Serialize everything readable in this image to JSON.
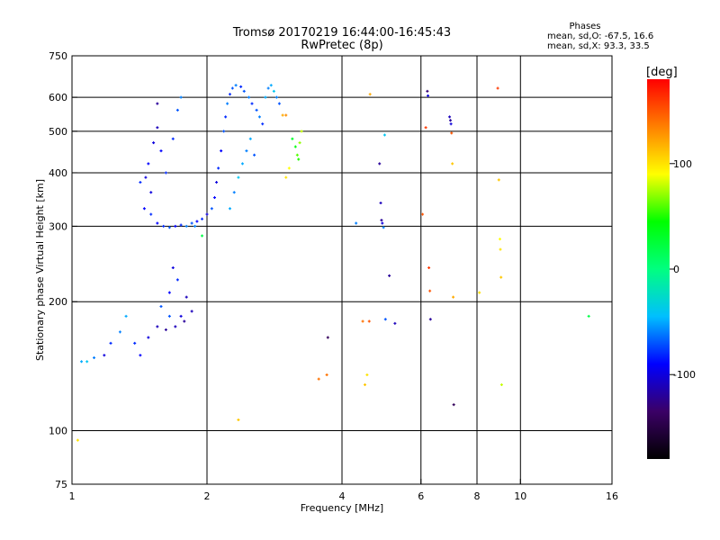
{
  "header": {
    "title_line1": "Tromsø 20170219 16:44:00-16:45:43",
    "title_line2": "RwPretec (8p)",
    "phases_label": "Phases",
    "phases_line1": "mean, sd,O: -67.5, 16.6",
    "phases_line2": "mean, sd,X:  93.3, 33.5"
  },
  "colorbar": {
    "unit_label": "[deg]",
    "ticks": [
      {
        "value": 100,
        "label": "100"
      },
      {
        "value": 0,
        "label": "0"
      },
      {
        "value": -100,
        "label": "-100"
      }
    ],
    "range": [
      -180,
      180
    ],
    "stops": [
      "#000000",
      "#3b0066",
      "#0000ff",
      "#00bfff",
      "#00ff80",
      "#00ff00",
      "#ffff00",
      "#ff8000",
      "#ff0000"
    ]
  },
  "chart_data": {
    "type": "scatter",
    "title": "Tromsø 20170219 16:44:00-16:45:43",
    "subtitle": "RwPretec (8p)",
    "xlabel": "Frequency [MHz]",
    "ylabel": "Stationary phase Virtual Height [km]",
    "xscale": "log",
    "yscale": "log",
    "xlim": [
      1,
      16
    ],
    "ylim": [
      75,
      750
    ],
    "grid": true,
    "xticks": [
      {
        "value": 1,
        "label": "1"
      },
      {
        "value": 2,
        "label": "2"
      },
      {
        "value": 4,
        "label": "4"
      },
      {
        "value": 6,
        "label": "6"
      },
      {
        "value": 8,
        "label": "8"
      },
      {
        "value": 10,
        "label": "10"
      },
      {
        "value": 16,
        "label": "16"
      }
    ],
    "xgrid": [
      2,
      4,
      6,
      8,
      10
    ],
    "yticks": [
      {
        "value": 75,
        "label": "75"
      },
      {
        "value": 100,
        "label": "100"
      },
      {
        "value": 200,
        "label": "200"
      },
      {
        "value": 300,
        "label": "300"
      },
      {
        "value": 400,
        "label": "400"
      },
      {
        "value": 500,
        "label": "500"
      },
      {
        "value": 600,
        "label": "600"
      },
      {
        "value": 750,
        "label": "750"
      }
    ],
    "ygrid": [
      100,
      200,
      300,
      400,
      500,
      600
    ],
    "point_encoding": "[frequency MHz, height km, phase deg]",
    "points": [
      [
        1.03,
        95,
        100
      ],
      [
        1.05,
        145,
        -50
      ],
      [
        1.08,
        145,
        -40
      ],
      [
        1.12,
        148,
        -60
      ],
      [
        1.18,
        150,
        -100
      ],
      [
        1.22,
        160,
        -80
      ],
      [
        1.28,
        170,
        -60
      ],
      [
        1.32,
        185,
        -50
      ],
      [
        1.38,
        160,
        -80
      ],
      [
        1.42,
        150,
        -90
      ],
      [
        1.48,
        165,
        -100
      ],
      [
        1.55,
        175,
        -110
      ],
      [
        1.62,
        172,
        -120
      ],
      [
        1.7,
        175,
        -110
      ],
      [
        1.78,
        180,
        -120
      ],
      [
        1.85,
        190,
        -110
      ],
      [
        1.58,
        195,
        -70
      ],
      [
        1.65,
        210,
        -90
      ],
      [
        1.68,
        240,
        -100
      ],
      [
        1.72,
        225,
        -80
      ],
      [
        1.8,
        205,
        -110
      ],
      [
        1.75,
        185,
        -100
      ],
      [
        1.65,
        185,
        -70
      ],
      [
        1.45,
        330,
        -90
      ],
      [
        1.5,
        360,
        -100
      ],
      [
        1.48,
        420,
        -90
      ],
      [
        1.52,
        470,
        -100
      ],
      [
        1.55,
        510,
        -110
      ],
      [
        1.58,
        450,
        -90
      ],
      [
        1.62,
        400,
        -80
      ],
      [
        1.68,
        480,
        -80
      ],
      [
        1.72,
        560,
        -70
      ],
      [
        1.75,
        600,
        -60
      ],
      [
        1.55,
        580,
        -120
      ],
      [
        1.42,
        380,
        -80
      ],
      [
        1.46,
        390,
        -100
      ],
      [
        1.5,
        320,
        -80
      ],
      [
        1.55,
        305,
        -90
      ],
      [
        1.6,
        300,
        -80
      ],
      [
        1.65,
        298,
        -70
      ],
      [
        1.7,
        300,
        -90
      ],
      [
        1.75,
        302,
        -80
      ],
      [
        1.8,
        300,
        -60
      ],
      [
        1.85,
        305,
        -70
      ],
      [
        1.9,
        308,
        -90
      ],
      [
        1.95,
        312,
        -80
      ],
      [
        2.0,
        320,
        -100
      ],
      [
        2.05,
        330,
        -70
      ],
      [
        2.08,
        350,
        -90
      ],
      [
        2.1,
        380,
        -100
      ],
      [
        2.12,
        410,
        -80
      ],
      [
        2.15,
        450,
        -90
      ],
      [
        2.18,
        500,
        -70
      ],
      [
        2.2,
        540,
        -80
      ],
      [
        2.22,
        580,
        -60
      ],
      [
        2.25,
        610,
        -80
      ],
      [
        2.28,
        630,
        -70
      ],
      [
        2.32,
        640,
        -60
      ],
      [
        2.38,
        635,
        -80
      ],
      [
        2.42,
        620,
        -70
      ],
      [
        2.48,
        600,
        -60
      ],
      [
        2.52,
        580,
        -80
      ],
      [
        2.58,
        560,
        -70
      ],
      [
        2.62,
        540,
        -60
      ],
      [
        2.66,
        520,
        -80
      ],
      [
        2.7,
        600,
        -50
      ],
      [
        2.74,
        630,
        -60
      ],
      [
        2.78,
        640,
        -50
      ],
      [
        2.82,
        620,
        -40
      ],
      [
        2.86,
        600,
        -60
      ],
      [
        2.9,
        580,
        -70
      ],
      [
        2.95,
        545,
        120
      ],
      [
        3.0,
        545,
        130
      ],
      [
        3.1,
        480,
        30
      ],
      [
        3.15,
        460,
        40
      ],
      [
        3.18,
        440,
        60
      ],
      [
        3.2,
        430,
        50
      ],
      [
        3.22,
        470,
        70
      ],
      [
        3.25,
        500,
        80
      ],
      [
        3.05,
        410,
        90
      ],
      [
        3.0,
        390,
        100
      ],
      [
        2.25,
        330,
        -50
      ],
      [
        2.3,
        360,
        -60
      ],
      [
        2.35,
        390,
        -40
      ],
      [
        2.4,
        420,
        -50
      ],
      [
        2.45,
        450,
        -60
      ],
      [
        2.5,
        480,
        -50
      ],
      [
        2.55,
        440,
        -70
      ],
      [
        1.95,
        285,
        20
      ],
      [
        1.88,
        300,
        -60
      ],
      [
        2.35,
        106,
        110
      ],
      [
        3.55,
        132,
        140
      ],
      [
        3.7,
        135,
        140
      ],
      [
        3.72,
        165,
        -140
      ],
      [
        4.3,
        305,
        -60
      ],
      [
        4.45,
        180,
        140
      ],
      [
        4.5,
        128,
        110
      ],
      [
        4.55,
        135,
        100
      ],
      [
        4.6,
        180,
        150
      ],
      [
        4.62,
        610,
        120
      ],
      [
        4.85,
        420,
        -120
      ],
      [
        4.88,
        340,
        -110
      ],
      [
        4.9,
        310,
        -120
      ],
      [
        4.92,
        305,
        -100
      ],
      [
        4.95,
        298,
        -60
      ],
      [
        4.98,
        490,
        -40
      ],
      [
        5.1,
        230,
        -120
      ],
      [
        5.25,
        178,
        -110
      ],
      [
        5.0,
        182,
        -70
      ],
      [
        6.05,
        320,
        150
      ],
      [
        6.15,
        510,
        160
      ],
      [
        6.2,
        620,
        -130
      ],
      [
        6.22,
        605,
        -100
      ],
      [
        6.25,
        240,
        160
      ],
      [
        6.28,
        212,
        150
      ],
      [
        6.3,
        182,
        -120
      ],
      [
        6.95,
        540,
        -110
      ],
      [
        6.98,
        530,
        -120
      ],
      [
        7.0,
        520,
        -100
      ],
      [
        7.02,
        495,
        150
      ],
      [
        7.05,
        420,
        110
      ],
      [
        7.08,
        205,
        120
      ],
      [
        7.1,
        115,
        -140
      ],
      [
        8.1,
        210,
        100
      ],
      [
        8.9,
        630,
        160
      ],
      [
        8.95,
        385,
        110
      ],
      [
        9.0,
        280,
        90
      ],
      [
        9.02,
        265,
        100
      ],
      [
        9.05,
        228,
        110
      ],
      [
        9.08,
        128,
        80
      ],
      [
        14.2,
        185,
        20
      ]
    ]
  }
}
